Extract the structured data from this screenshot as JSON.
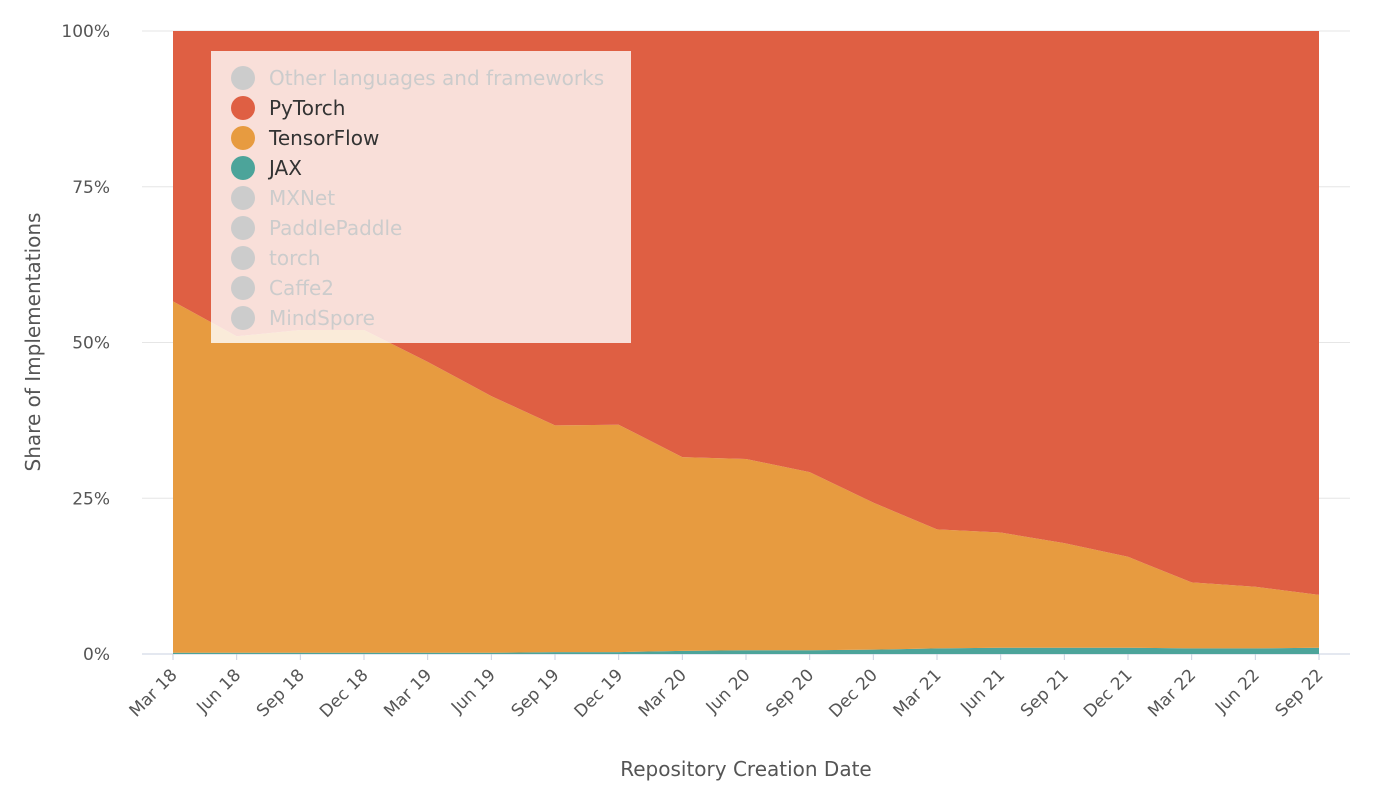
{
  "chart_data": {
    "type": "area",
    "stacked": "percent",
    "xlabel": "Repository Creation Date",
    "ylabel": "Share of Implementations",
    "ylim": [
      0,
      100
    ],
    "yticks": [
      "0%",
      "25%",
      "50%",
      "75%",
      "100%"
    ],
    "x": [
      "Mar 18",
      "Jun 18",
      "Sep 18",
      "Dec 18",
      "Mar 19",
      "Jun 19",
      "Sep 19",
      "Dec 19",
      "Mar 20",
      "Jun 20",
      "Sep 20",
      "Dec 20",
      "Mar 21",
      "Jun 21",
      "Sep 21",
      "Dec 21",
      "Mar 22",
      "Jun 22",
      "Sep 22"
    ],
    "grid": true,
    "legend_position": "top-left",
    "legend": [
      {
        "name": "Other languages and frameworks",
        "color": "#cccccc",
        "active": false
      },
      {
        "name": "PyTorch",
        "color": "#df5f43",
        "active": true
      },
      {
        "name": "TensorFlow",
        "color": "#e79b40",
        "active": true
      },
      {
        "name": "JAX",
        "color": "#4ca49a",
        "active": true
      },
      {
        "name": "MXNet",
        "color": "#cccccc",
        "active": false
      },
      {
        "name": "PaddlePaddle",
        "color": "#cccccc",
        "active": false
      },
      {
        "name": "torch",
        "color": "#cccccc",
        "active": false
      },
      {
        "name": "Caffe2",
        "color": "#cccccc",
        "active": false
      },
      {
        "name": "MindSpore",
        "color": "#cccccc",
        "active": false
      }
    ],
    "series": [
      {
        "name": "JAX",
        "color": "#4ca49a",
        "values": [
          0.2,
          0.2,
          0.2,
          0.2,
          0.2,
          0.2,
          0.3,
          0.3,
          0.5,
          0.6,
          0.6,
          0.7,
          0.9,
          1.0,
          1.0,
          1.0,
          0.9,
          0.9,
          1.0
        ]
      },
      {
        "name": "TensorFlow",
        "color": "#e79b40",
        "values": [
          56.4,
          50.8,
          51.8,
          51.8,
          46.7,
          41.2,
          36.4,
          36.5,
          31.1,
          30.7,
          28.6,
          23.6,
          19.1,
          18.5,
          16.8,
          14.6,
          10.6,
          9.9,
          8.5
        ]
      },
      {
        "name": "PyTorch",
        "color": "#df5f43",
        "values": [
          43.4,
          49.0,
          48.0,
          48.0,
          53.1,
          58.6,
          63.3,
          63.2,
          68.4,
          68.7,
          70.8,
          75.7,
          80.0,
          80.5,
          82.2,
          84.4,
          88.5,
          89.2,
          90.5
        ]
      }
    ]
  }
}
